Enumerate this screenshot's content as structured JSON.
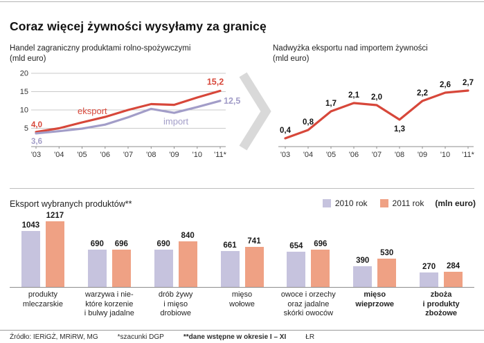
{
  "page": {
    "title": "Coraz więcej żywności wysyłamy za granicę",
    "footer": {
      "source": "Źródło: IERiGŻ, MRiRW, MG",
      "note1": "*szacunki DGP",
      "note2": "**dane wstępne w okresie I – XI",
      "credit": "ŁR"
    }
  },
  "colors": {
    "eksport": "#d7473a",
    "import": "#a29dc8",
    "bar2010": "#c6c3de",
    "bar2011": "#efa184",
    "grid": "#c9c9c9",
    "axis": "#8c8c8c",
    "arrow": "#d9d9d9"
  },
  "chart_data": [
    {
      "id": "trade",
      "type": "line",
      "title": "Handel zagraniczny produktami rolno-spożywczymi",
      "unit": "(mld euro)",
      "x": [
        "'03",
        "'04",
        "'05",
        "'06",
        "'07",
        "'08",
        "'09",
        "'10",
        "'11*"
      ],
      "ylim": [
        0,
        20
      ],
      "yticks": [
        5,
        10,
        15,
        20
      ],
      "series": [
        {
          "name": "eksport",
          "color_key": "eksport",
          "values": [
            4.0,
            5.0,
            6.6,
            8.1,
            10.0,
            11.6,
            11.4,
            13.4,
            15.2
          ],
          "first_label": "4,0",
          "last_label": "15,2"
        },
        {
          "name": "import",
          "color_key": "import",
          "values": [
            3.6,
            4.2,
            4.9,
            6.0,
            8.0,
            10.3,
            9.2,
            10.8,
            12.5
          ],
          "first_label": "3,6",
          "last_label": "12,5"
        }
      ]
    },
    {
      "id": "surplus",
      "type": "line",
      "title": "Nadwyżka eksportu nad importem żywności",
      "unit": "(mld euro)",
      "x": [
        "'03",
        "'04",
        "'05",
        "'06",
        "'07",
        "'08",
        "'09",
        "'10",
        "'11*"
      ],
      "ylim": [
        0,
        3
      ],
      "values": [
        0.4,
        0.8,
        1.7,
        2.1,
        2.0,
        1.3,
        2.2,
        2.6,
        2.7
      ],
      "labels": [
        "0,4",
        "0,8",
        "1,7",
        "2,1",
        "2,0",
        "1,3",
        "2,2",
        "2,6",
        "2,7"
      ],
      "labels_below": [
        5
      ]
    },
    {
      "id": "products",
      "type": "bar",
      "title": "Eksport wybranych  produktów**",
      "unit": "(mln euro)",
      "legend": [
        {
          "label": "2010 rok",
          "color_key": "bar2010"
        },
        {
          "label": "2011 rok",
          "color_key": "bar2011"
        }
      ],
      "categories": [
        {
          "lines": [
            "produkty",
            "mleczarskie"
          ],
          "bold": false
        },
        {
          "lines": [
            "warzywa i nie-",
            "które korzenie",
            "i bulwy jadalne"
          ],
          "bold": false
        },
        {
          "lines": [
            "drób żywy",
            "i mięso",
            "drobiowe"
          ],
          "bold": false
        },
        {
          "lines": [
            "mięso",
            "wołowe"
          ],
          "bold": false
        },
        {
          "lines": [
            "owoce i orzechy",
            "oraz jadalne",
            "skórki owoców"
          ],
          "bold": false
        },
        {
          "lines": [
            "mięso",
            "wieprzowe"
          ],
          "bold": true
        },
        {
          "lines": [
            "zboża",
            "i produkty",
            "zbożowe"
          ],
          "bold": true
        }
      ],
      "series": [
        {
          "name": "2010",
          "values": [
            1043,
            690,
            690,
            661,
            654,
            390,
            270
          ]
        },
        {
          "name": "2011",
          "values": [
            1217,
            696,
            840,
            741,
            696,
            530,
            284
          ]
        }
      ],
      "ylim": [
        0,
        1280
      ]
    }
  ]
}
